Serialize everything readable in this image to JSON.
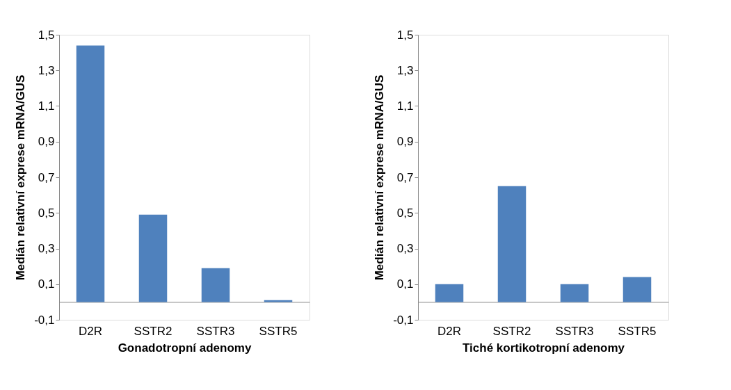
{
  "chart_data": [
    {
      "type": "bar",
      "xlabel": "Gonadotropní adenomy",
      "ylabel": "Medián relativní exprese mRNA/GUS",
      "categories": [
        "D2R",
        "SSTR2",
        "SSTR3",
        "SSTR5"
      ],
      "series": [
        {
          "color": "#4f81bd",
          "values": [
            1.44,
            0.49,
            0.19,
            0.01
          ]
        }
      ],
      "ylim": [
        -0.1,
        1.5
      ],
      "yticks": [
        {
          "value": -0.1,
          "label": "-0,1"
        },
        {
          "value": 0.1,
          "label": "0,1"
        },
        {
          "value": 0.3,
          "label": "0,3"
        },
        {
          "value": 0.5,
          "label": "0,5"
        },
        {
          "value": 0.7,
          "label": "0,7"
        },
        {
          "value": 0.9,
          "label": "0,9"
        },
        {
          "value": 1.1,
          "label": "1,1"
        },
        {
          "value": 1.3,
          "label": "1,3"
        },
        {
          "value": 1.5,
          "label": "1,5"
        }
      ],
      "grid": false
    },
    {
      "type": "bar",
      "xlabel": "Tiché kortikotropní adenomy",
      "ylabel": "Medián relativní exprese mRNA/GUS",
      "categories": [
        "D2R",
        "SSTR2",
        "SSTR3",
        "SSTR5"
      ],
      "series": [
        {
          "color": "#4f81bd",
          "values": [
            0.1,
            0.65,
            0.1,
            0.14
          ]
        }
      ],
      "ylim": [
        -0.1,
        1.5
      ],
      "yticks": [
        {
          "value": -0.1,
          "label": "-0,1"
        },
        {
          "value": 0.1,
          "label": "0,1"
        },
        {
          "value": 0.3,
          "label": "0,3"
        },
        {
          "value": 0.5,
          "label": "0,5"
        },
        {
          "value": 0.7,
          "label": "0,7"
        },
        {
          "value": 0.9,
          "label": "0,9"
        },
        {
          "value": 1.1,
          "label": "1,1"
        },
        {
          "value": 1.3,
          "label": "1,3"
        },
        {
          "value": 1.5,
          "label": "1,5"
        }
      ],
      "grid": false
    }
  ]
}
